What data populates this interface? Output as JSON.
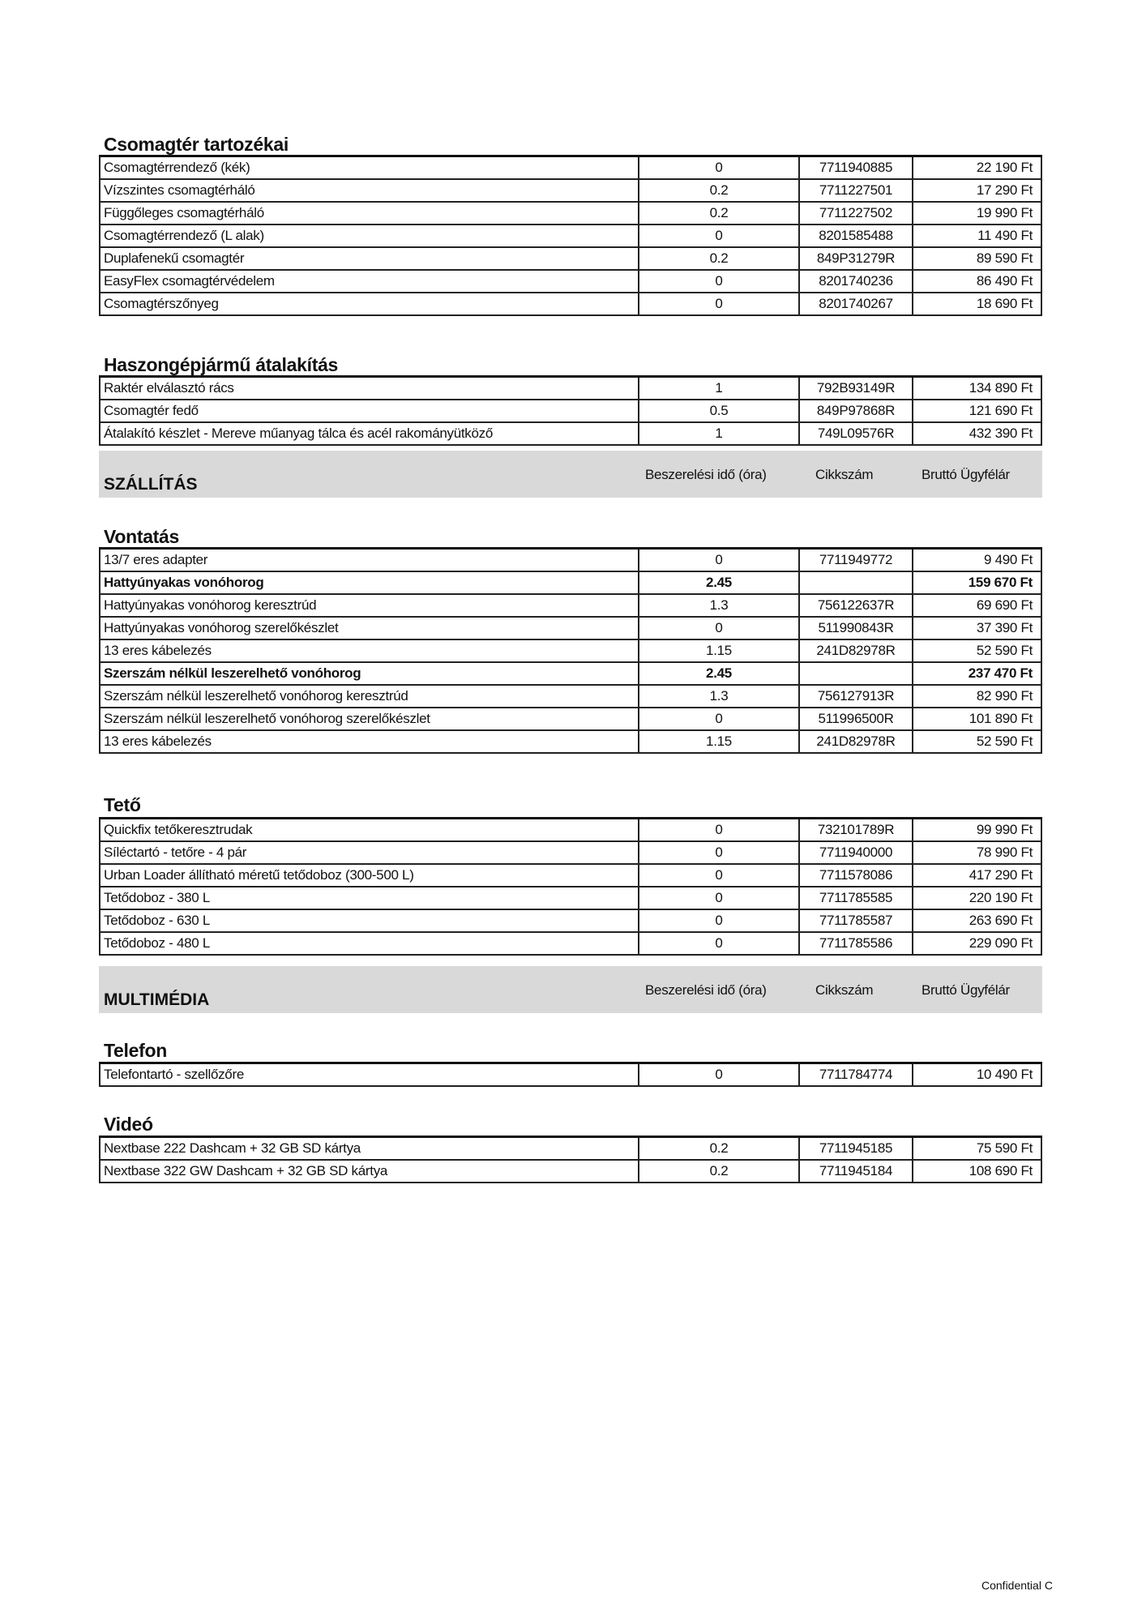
{
  "column_headers": {
    "time": "Beszerelési idő (óra)",
    "code": "Cikkszám",
    "price": "Bruttó Ügyfélár"
  },
  "sections": [
    {
      "title": "Csomagtér tartozékai",
      "rows": [
        {
          "name": "Csomagtérrendező (kék)",
          "time": "0",
          "code": "7711940885",
          "price": "22 190 Ft"
        },
        {
          "name": "Vízszintes csomagtérháló",
          "time": "0.2",
          "code": "7711227501",
          "price": "17 290 Ft"
        },
        {
          "name": "Függőleges csomagtérháló",
          "time": "0.2",
          "code": "7711227502",
          "price": "19 990 Ft"
        },
        {
          "name": "Csomagtérrendező (L alak)",
          "time": "0",
          "code": "8201585488",
          "price": "11 490 Ft"
        },
        {
          "name": "Duplafenekű csomagtér",
          "time": "0.2",
          "code": "849P31279R",
          "price": "89 590 Ft"
        },
        {
          "name": "EasyFlex csomagtérvédelem",
          "time": "0",
          "code": "8201740236",
          "price": "86 490 Ft"
        },
        {
          "name": "Csomagtérszőnyeg",
          "time": "0",
          "code": "8201740267",
          "price": "18 690 Ft"
        }
      ]
    },
    {
      "title": "Haszongépjármű átalakítás",
      "rows": [
        {
          "name": "Raktér elválasztó rács",
          "time": "1",
          "code": "792B93149R",
          "price": "134 890 Ft"
        },
        {
          "name": "Csomagtér fedő",
          "time": "0.5",
          "code": "849P97868R",
          "price": "121 690 Ft"
        },
        {
          "name": "Átalakító készlet - Mereve műanyag tálca és acél rakományütköző",
          "time": "1",
          "code": "749L09576R",
          "price": "432 390 Ft"
        }
      ]
    },
    {
      "title": "Vontatás",
      "rows": [
        {
          "name": "13/7 eres adapter",
          "time": "0",
          "code": "7711949772",
          "price": "9 490 Ft"
        },
        {
          "name": "Hattyúnyakas vonóhorog",
          "time": "2.45",
          "code": "",
          "price": "159 670 Ft",
          "bold": true
        },
        {
          "name": "Hattyúnyakas vonóhorog keresztrúd",
          "time": "1.3",
          "code": "756122637R",
          "price": "69 690 Ft"
        },
        {
          "name": "Hattyúnyakas vonóhorog szerelőkészlet",
          "time": "0",
          "code": "511990843R",
          "price": "37 390 Ft"
        },
        {
          "name": "13 eres kábelezés",
          "time": "1.15",
          "code": "241D82978R",
          "price": "52 590 Ft"
        },
        {
          "name": "Szerszám nélkül leszerelhető vonóhorog",
          "time": "2.45",
          "code": "",
          "price": "237 470 Ft",
          "bold": true
        },
        {
          "name": "Szerszám nélkül leszerelhető vonóhorog keresztrúd",
          "time": "1.3",
          "code": "756127913R",
          "price": "82 990 Ft"
        },
        {
          "name": "Szerszám nélkül leszerelhető vonóhorog szerelőkészlet",
          "time": "0",
          "code": "511996500R",
          "price": "101 890 Ft"
        },
        {
          "name": "13 eres kábelezés",
          "time": "1.15",
          "code": "241D82978R",
          "price": "52 590 Ft"
        }
      ]
    },
    {
      "title": "Tető",
      "rows": [
        {
          "name": "Quickfix tetőkeresztrudak",
          "time": "0",
          "code": "732101789R",
          "price": "99 990 Ft"
        },
        {
          "name": "Síléctartó - tetőre - 4 pár",
          "time": "0",
          "code": "7711940000",
          "price": "78 990 Ft"
        },
        {
          "name": "Urban Loader állítható méretű tetődoboz (300-500 L)",
          "time": "0",
          "code": "7711578086",
          "price": "417 290 Ft"
        },
        {
          "name": "Tetődoboz - 380 L",
          "time": "0",
          "code": "7711785585",
          "price": "220 190 Ft"
        },
        {
          "name": "Tetődoboz - 630 L",
          "time": "0",
          "code": "7711785587",
          "price": "263 690 Ft"
        },
        {
          "name": "Tetődoboz - 480 L",
          "time": "0",
          "code": "7711785586",
          "price": "229 090 Ft"
        }
      ]
    },
    {
      "title": "Telefon",
      "rows": [
        {
          "name": "Telefontartó - szellőzőre",
          "time": "0",
          "code": "7711784774",
          "price": "10 490 Ft"
        }
      ]
    },
    {
      "title": "Videó",
      "rows": [
        {
          "name": "Nextbase 222 Dashcam + 32 GB SD kártya",
          "time": "0.2",
          "code": "7711945185",
          "price": "75 590 Ft"
        },
        {
          "name": "Nextbase 322 GW Dashcam + 32 GB SD kártya",
          "time": "0.2",
          "code": "7711945184",
          "price": "108 690 Ft"
        }
      ]
    }
  ],
  "bands": [
    {
      "title": "SZÁLLÍTÁS"
    },
    {
      "title": "MULTIMÉDIA"
    }
  ],
  "footer": {
    "confidential": "Confidential C"
  }
}
